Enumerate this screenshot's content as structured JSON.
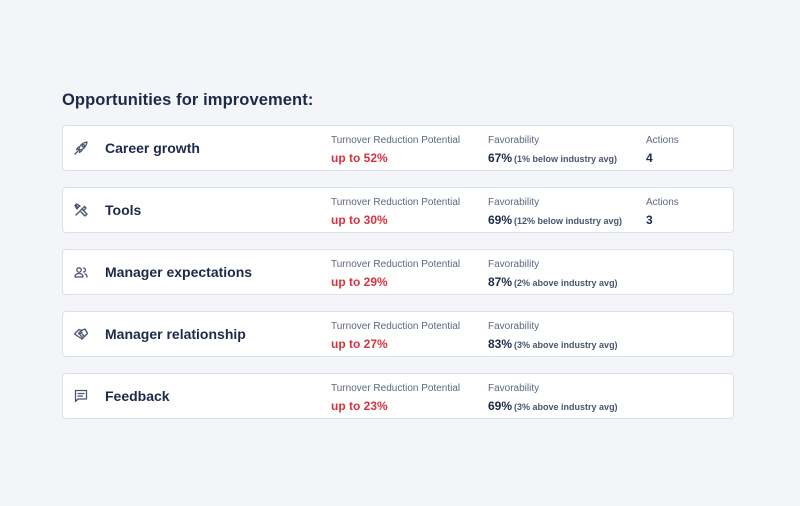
{
  "heading": "Opportunities for improvement:",
  "labels": {
    "turnover": "Turnover Reduction Potential",
    "favorability": "Favorability",
    "actions": "Actions"
  },
  "items": [
    {
      "name": "Career growth",
      "icon": "rocket-icon",
      "turnover": "up to 52%",
      "fav_pct": "67%",
      "fav_note": "(1% below industry avg)",
      "actions": "4"
    },
    {
      "name": "Tools",
      "icon": "tools-icon",
      "turnover": "up to 30%",
      "fav_pct": "69%",
      "fav_note": "(12% below industry avg)",
      "actions": "3"
    },
    {
      "name": "Manager expectations",
      "icon": "people-icon",
      "turnover": "up to 29%",
      "fav_pct": "87%",
      "fav_note": "(2% above industry avg)"
    },
    {
      "name": "Manager relationship",
      "icon": "handshake-icon",
      "turnover": "up to 27%",
      "fav_pct": "83%",
      "fav_note": "(3% above industry avg)"
    },
    {
      "name": "Feedback",
      "icon": "message-icon",
      "turnover": "up to 23%",
      "fav_pct": "69%",
      "fav_note": "(3% above industry avg)"
    }
  ],
  "colors": {
    "accent_red": "#d63340",
    "text_dark": "#1c2a4a",
    "muted": "#5c6781"
  }
}
